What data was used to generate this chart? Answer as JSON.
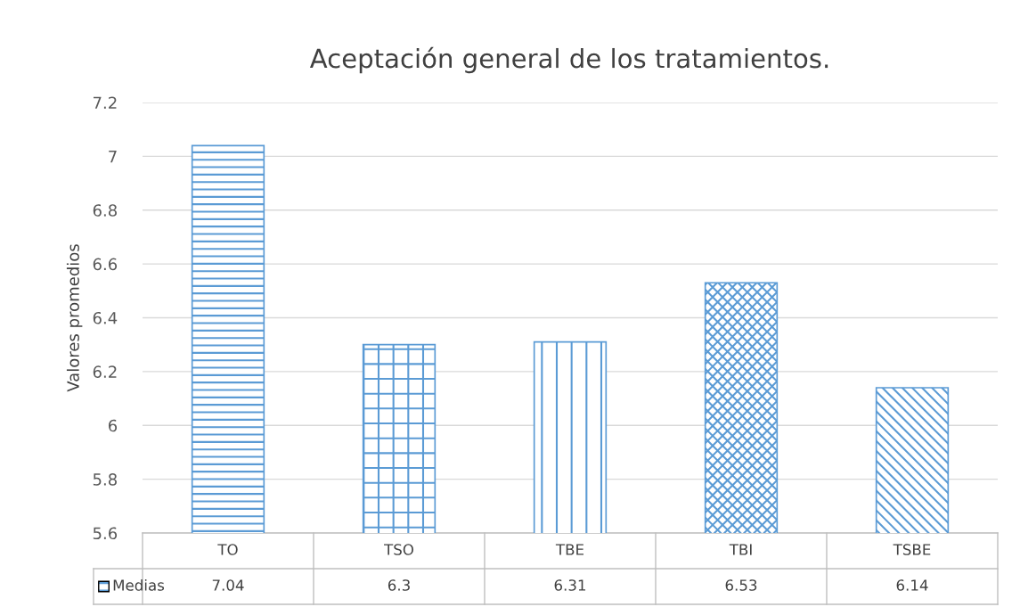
{
  "chart_data": {
    "type": "bar",
    "title": "Aceptación general de los tratamientos.",
    "ylabel": "Valores promedios",
    "categories": [
      "TO",
      "TSO",
      "TBE",
      "TBI",
      "TSBE"
    ],
    "series": [
      {
        "name": "Medias",
        "color": "#5b9bd5",
        "values": [
          7.04,
          6.3,
          6.31,
          6.53,
          6.14
        ]
      }
    ],
    "ylim": [
      5.6,
      7.2
    ],
    "yticks": [
      5.6,
      5.8,
      6,
      6.2,
      6.4,
      6.6,
      6.8,
      7,
      7.2
    ],
    "grid": "y",
    "data_labels": true,
    "legend": "bottom"
  }
}
